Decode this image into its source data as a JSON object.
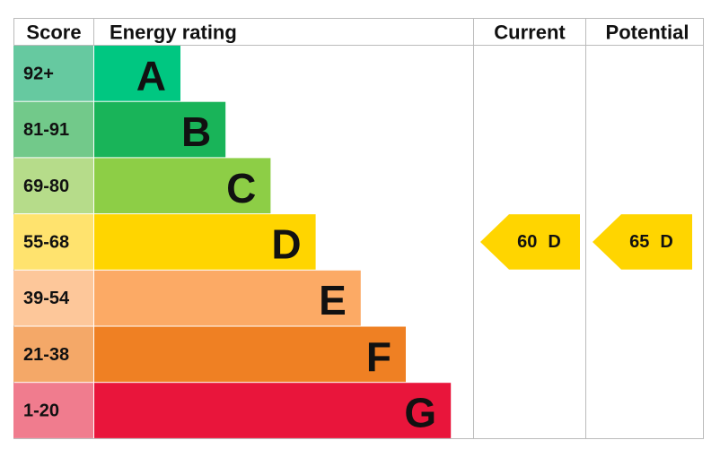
{
  "header": {
    "score": "Score",
    "rating": "Energy rating",
    "current": "Current",
    "potential": "Potential"
  },
  "bands": [
    {
      "score": "92+",
      "letter": "A",
      "color": "#00c781",
      "score_color": "#66c9a0"
    },
    {
      "score": "81-91",
      "letter": "B",
      "color": "#19b459",
      "score_color": "#72c98a"
    },
    {
      "score": "69-80",
      "letter": "C",
      "color": "#8dce46",
      "score_color": "#b6dc8a"
    },
    {
      "score": "55-68",
      "letter": "D",
      "color": "#ffd500",
      "score_color": "#ffe36e"
    },
    {
      "score": "39-54",
      "letter": "E",
      "color": "#fcaa65",
      "score_color": "#fdc79a"
    },
    {
      "score": "21-38",
      "letter": "F",
      "color": "#ef8023",
      "score_color": "#f4a868"
    },
    {
      "score": "1-20",
      "letter": "G",
      "color": "#e9153b",
      "score_color": "#f07c8e"
    }
  ],
  "current": {
    "value": 60,
    "letter": "D"
  },
  "potential": {
    "value": 65,
    "letter": "D"
  }
}
